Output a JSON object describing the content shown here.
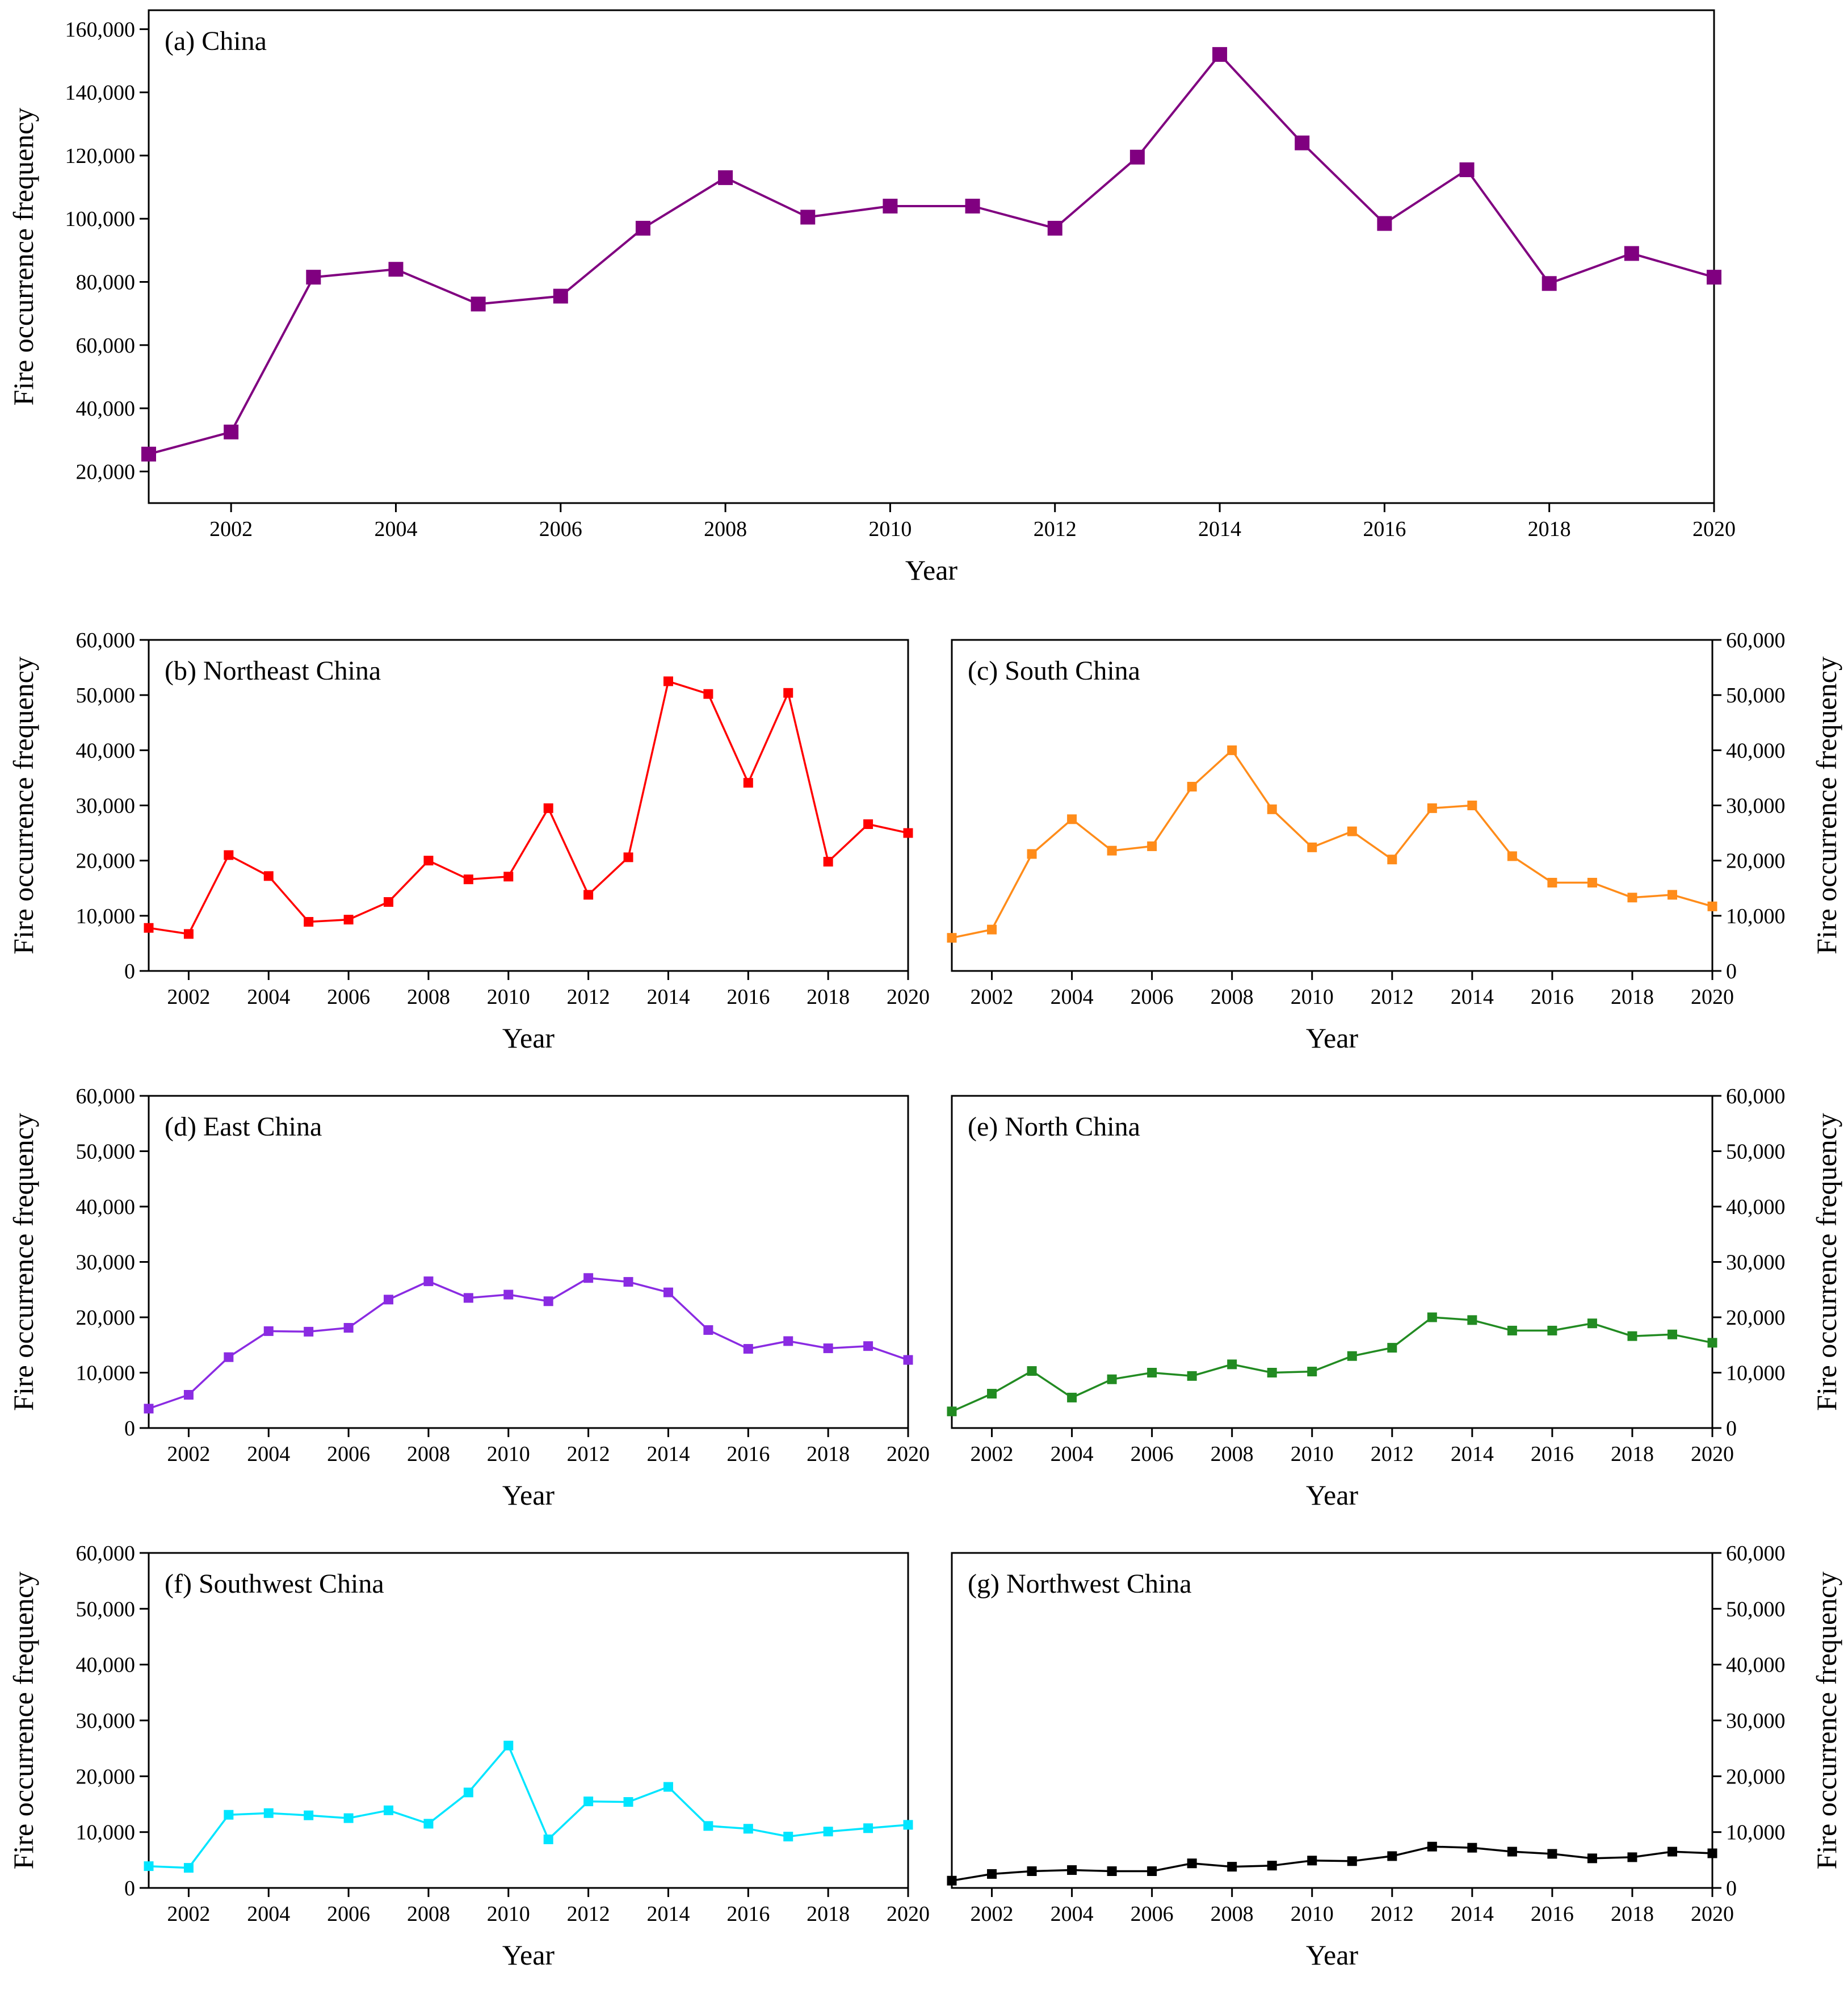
{
  "chart_data": [
    {
      "panel": "a",
      "type": "line",
      "title": "(a) China",
      "xlabel": "Year",
      "ylabel": "Fire occurrence frequency",
      "ylabel_side": "left",
      "color": "#800080",
      "x": [
        2001,
        2002,
        2003,
        2004,
        2005,
        2006,
        2007,
        2008,
        2009,
        2010,
        2011,
        2012,
        2013,
        2014,
        2015,
        2016,
        2017,
        2018,
        2019,
        2020
      ],
      "values": [
        25500,
        32500,
        81500,
        84000,
        73000,
        75500,
        97000,
        113000,
        100500,
        104000,
        104000,
        97000,
        119500,
        152000,
        124000,
        98500,
        115500,
        79500,
        89000,
        81500
      ],
      "xticks": [
        2002,
        2004,
        2006,
        2008,
        2010,
        2012,
        2014,
        2016,
        2018,
        2020
      ],
      "xtick_labels": [
        "2002",
        "2004",
        "2006",
        "2008",
        "2010",
        "2012",
        "2014",
        "2016",
        "2018",
        "2020"
      ],
      "yticks": [
        20000,
        40000,
        60000,
        80000,
        100000,
        120000,
        140000,
        160000
      ],
      "ytick_labels": [
        "20,000",
        "40,000",
        "60,000",
        "80,000",
        "100,000",
        "120,000",
        "140,000",
        "160,000"
      ],
      "xlim": [
        2001,
        2020
      ],
      "ylim": [
        10000,
        166000
      ]
    },
    {
      "panel": "b",
      "type": "line",
      "title": "(b) Northeast China",
      "xlabel": "Year",
      "ylabel": "Fire occurrence frequency",
      "ylabel_side": "left",
      "color": "#ff0000",
      "x": [
        2001,
        2002,
        2003,
        2004,
        2005,
        2006,
        2007,
        2008,
        2009,
        2010,
        2011,
        2012,
        2013,
        2014,
        2015,
        2016,
        2017,
        2018,
        2019,
        2020
      ],
      "values": [
        7800,
        6700,
        21000,
        17200,
        8900,
        9300,
        12500,
        20000,
        16600,
        17100,
        29500,
        13800,
        20600,
        52500,
        50200,
        34100,
        50400,
        19800,
        26600,
        25000
      ],
      "xticks": [
        2002,
        2004,
        2006,
        2008,
        2010,
        2012,
        2014,
        2016,
        2018,
        2020
      ],
      "xtick_labels": [
        "2002",
        "2004",
        "2006",
        "2008",
        "2010",
        "2012",
        "2014",
        "2016",
        "2018",
        "2020"
      ],
      "yticks": [
        0,
        10000,
        20000,
        30000,
        40000,
        50000,
        60000
      ],
      "ytick_labels": [
        "0",
        "10,000",
        "20,000",
        "30,000",
        "40,000",
        "50,000",
        "60,000"
      ],
      "xlim": [
        2001,
        2020
      ],
      "ylim": [
        0,
        60000
      ]
    },
    {
      "panel": "c",
      "type": "line",
      "title": "(c) South China",
      "xlabel": "Year",
      "ylabel": "Fire occurrence frequency",
      "ylabel_side": "right",
      "color": "#ff8c1a",
      "x": [
        2001,
        2002,
        2003,
        2004,
        2005,
        2006,
        2007,
        2008,
        2009,
        2010,
        2011,
        2012,
        2013,
        2014,
        2015,
        2016,
        2017,
        2018,
        2019,
        2020
      ],
      "values": [
        6000,
        7500,
        21200,
        27500,
        21800,
        22600,
        33400,
        40000,
        29300,
        22400,
        25300,
        20200,
        29500,
        30000,
        20800,
        16000,
        16000,
        13300,
        13800,
        11700
      ],
      "xticks": [
        2002,
        2004,
        2006,
        2008,
        2010,
        2012,
        2014,
        2016,
        2018,
        2020
      ],
      "xtick_labels": [
        "2002",
        "2004",
        "2006",
        "2008",
        "2010",
        "2012",
        "2014",
        "2016",
        "2018",
        "2020"
      ],
      "yticks": [
        0,
        10000,
        20000,
        30000,
        40000,
        50000,
        60000
      ],
      "ytick_labels": [
        "0",
        "10,000",
        "20,000",
        "30,000",
        "40,000",
        "50,000",
        "60,000"
      ],
      "xlim": [
        2001,
        2020
      ],
      "ylim": [
        0,
        60000
      ]
    },
    {
      "panel": "d",
      "type": "line",
      "title": "(d) East China",
      "xlabel": "Year",
      "ylabel": "Fire occurrence frequency",
      "ylabel_side": "left",
      "color": "#8a2be2",
      "x": [
        2001,
        2002,
        2003,
        2004,
        2005,
        2006,
        2007,
        2008,
        2009,
        2010,
        2011,
        2012,
        2013,
        2014,
        2015,
        2016,
        2017,
        2018,
        2019,
        2020
      ],
      "values": [
        3500,
        6000,
        12800,
        17500,
        17400,
        18100,
        23200,
        26500,
        23500,
        24100,
        22900,
        27100,
        26400,
        24500,
        17700,
        14300,
        15700,
        14400,
        14800,
        12300
      ],
      "xticks": [
        2002,
        2004,
        2006,
        2008,
        2010,
        2012,
        2014,
        2016,
        2018,
        2020
      ],
      "xtick_labels": [
        "2002",
        "2004",
        "2006",
        "2008",
        "2010",
        "2012",
        "2014",
        "2016",
        "2018",
        "2020"
      ],
      "yticks": [
        0,
        10000,
        20000,
        30000,
        40000,
        50000,
        60000
      ],
      "ytick_labels": [
        "0",
        "10,000",
        "20,000",
        "30,000",
        "40,000",
        "50,000",
        "60,000"
      ],
      "xlim": [
        2001,
        2020
      ],
      "ylim": [
        0,
        60000
      ]
    },
    {
      "panel": "e",
      "type": "line",
      "title": "(e) North China",
      "xlabel": "Year",
      "ylabel": "Fire occurrence frequency",
      "ylabel_side": "right",
      "color": "#228b22",
      "x": [
        2001,
        2002,
        2003,
        2004,
        2005,
        2006,
        2007,
        2008,
        2009,
        2010,
        2011,
        2012,
        2013,
        2014,
        2015,
        2016,
        2017,
        2018,
        2019,
        2020
      ],
      "values": [
        3000,
        6200,
        10300,
        5500,
        8800,
        10000,
        9400,
        11500,
        10000,
        10200,
        13000,
        14500,
        20000,
        19500,
        17600,
        17600,
        18900,
        16600,
        16900,
        15400
      ],
      "xticks": [
        2002,
        2004,
        2006,
        2008,
        2010,
        2012,
        2014,
        2016,
        2018,
        2020
      ],
      "xtick_labels": [
        "2002",
        "2004",
        "2006",
        "2008",
        "2010",
        "2012",
        "2014",
        "2016",
        "2018",
        "2020"
      ],
      "yticks": [
        0,
        10000,
        20000,
        30000,
        40000,
        50000,
        60000
      ],
      "ytick_labels": [
        "0",
        "10,000",
        "20,000",
        "30,000",
        "40,000",
        "50,000",
        "60,000"
      ],
      "xlim": [
        2001,
        2020
      ],
      "ylim": [
        0,
        60000
      ]
    },
    {
      "panel": "f",
      "type": "line",
      "title": "(f) Southwest China",
      "xlabel": "Year",
      "ylabel": "Fire occurrence frequency",
      "ylabel_side": "left",
      "color": "#00e5ff",
      "x": [
        2001,
        2002,
        2003,
        2004,
        2005,
        2006,
        2007,
        2008,
        2009,
        2010,
        2011,
        2012,
        2013,
        2014,
        2015,
        2016,
        2017,
        2018,
        2019,
        2020
      ],
      "values": [
        3900,
        3600,
        13100,
        13400,
        13000,
        12500,
        13900,
        11500,
        17100,
        25500,
        8700,
        15500,
        15400,
        18100,
        11100,
        10600,
        9200,
        10100,
        10700,
        11300
      ],
      "xticks": [
        2002,
        2004,
        2006,
        2008,
        2010,
        2012,
        2014,
        2016,
        2018,
        2020
      ],
      "xtick_labels": [
        "2002",
        "2004",
        "2006",
        "2008",
        "2010",
        "2012",
        "2014",
        "2016",
        "2018",
        "2020"
      ],
      "yticks": [
        0,
        10000,
        20000,
        30000,
        40000,
        50000,
        60000
      ],
      "ytick_labels": [
        "0",
        "10,000",
        "20,000",
        "30,000",
        "40,000",
        "50,000",
        "60,000"
      ],
      "xlim": [
        2001,
        2020
      ],
      "ylim": [
        0,
        60000
      ]
    },
    {
      "panel": "g",
      "type": "line",
      "title": "(g) Northwest China",
      "xlabel": "Year",
      "ylabel": "Fire occurrence frequency",
      "ylabel_side": "right",
      "color": "#000000",
      "x": [
        2001,
        2002,
        2003,
        2004,
        2005,
        2006,
        2007,
        2008,
        2009,
        2010,
        2011,
        2012,
        2013,
        2014,
        2015,
        2016,
        2017,
        2018,
        2019,
        2020
      ],
      "values": [
        1300,
        2500,
        3000,
        3200,
        3000,
        3000,
        4400,
        3800,
        4000,
        4900,
        4800,
        5700,
        7400,
        7200,
        6500,
        6100,
        5300,
        5500,
        6500,
        6200
      ],
      "xticks": [
        2002,
        2004,
        2006,
        2008,
        2010,
        2012,
        2014,
        2016,
        2018,
        2020
      ],
      "xtick_labels": [
        "2002",
        "2004",
        "2006",
        "2008",
        "2010",
        "2012",
        "2014",
        "2016",
        "2018",
        "2020"
      ],
      "yticks": [
        0,
        10000,
        20000,
        30000,
        40000,
        50000,
        60000
      ],
      "ytick_labels": [
        "0",
        "10,000",
        "20,000",
        "30,000",
        "40,000",
        "50,000",
        "60,000"
      ],
      "xlim": [
        2001,
        2020
      ],
      "ylim": [
        0,
        60000
      ]
    }
  ]
}
